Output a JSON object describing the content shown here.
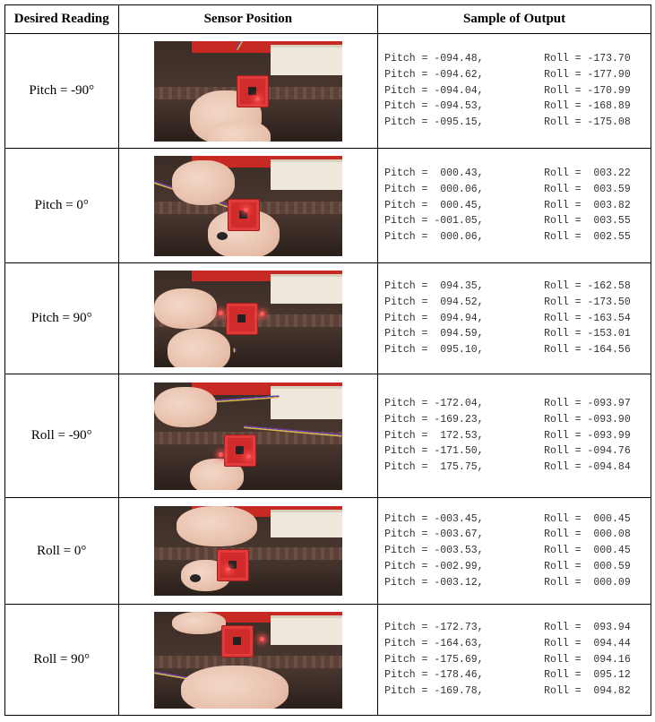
{
  "headers": {
    "desired_reading": "Desired Reading",
    "sensor_position": "Sensor Position",
    "sample_output": "Sample of Output"
  },
  "rows": [
    {
      "reading": "Pitch = -90°",
      "photo_icon": "sensor-photo",
      "lines": [
        {
          "pitch": "Pitch = -094.48,",
          "roll": "Roll = -173.70"
        },
        {
          "pitch": "Pitch = -094.62,",
          "roll": "Roll = -177.90"
        },
        {
          "pitch": "Pitch = -094.04,",
          "roll": "Roll = -170.99"
        },
        {
          "pitch": "Pitch = -094.53,",
          "roll": "Roll = -168.89"
        },
        {
          "pitch": "Pitch = -095.15,",
          "roll": "Roll = -175.08"
        }
      ]
    },
    {
      "reading": "Pitch = 0°",
      "photo_icon": "sensor-photo",
      "lines": [
        {
          "pitch": "Pitch =  000.43,",
          "roll": "Roll =  003.22"
        },
        {
          "pitch": "Pitch =  000.06,",
          "roll": "Roll =  003.59"
        },
        {
          "pitch": "Pitch =  000.45,",
          "roll": "Roll =  003.82"
        },
        {
          "pitch": "Pitch = -001.05,",
          "roll": "Roll =  003.55"
        },
        {
          "pitch": "Pitch =  000.06,",
          "roll": "Roll =  002.55"
        }
      ]
    },
    {
      "reading": "Pitch = 90°",
      "photo_icon": "sensor-photo",
      "lines": [
        {
          "pitch": "Pitch =  094.35,",
          "roll": "Roll = -162.58"
        },
        {
          "pitch": "Pitch =  094.52,",
          "roll": "Roll = -173.50"
        },
        {
          "pitch": "Pitch =  094.94,",
          "roll": "Roll = -163.54"
        },
        {
          "pitch": "Pitch =  094.59,",
          "roll": "Roll = -153.01"
        },
        {
          "pitch": "Pitch =  095.10,",
          "roll": "Roll = -164.56"
        }
      ]
    },
    {
      "reading": "Roll = -90°",
      "photo_icon": "sensor-photo",
      "lines": [
        {
          "pitch": "Pitch = -172.04,",
          "roll": "Roll = -093.97"
        },
        {
          "pitch": "Pitch = -169.23,",
          "roll": "Roll = -093.90"
        },
        {
          "pitch": "Pitch =  172.53,",
          "roll": "Roll = -093.99"
        },
        {
          "pitch": "Pitch = -171.50,",
          "roll": "Roll = -094.76"
        },
        {
          "pitch": "Pitch =  175.75,",
          "roll": "Roll = -094.84"
        }
      ]
    },
    {
      "reading": "Roll = 0°",
      "photo_icon": "sensor-photo",
      "lines": [
        {
          "pitch": "Pitch = -003.45,",
          "roll": "Roll =  000.45"
        },
        {
          "pitch": "Pitch = -003.67,",
          "roll": "Roll =  000.08"
        },
        {
          "pitch": "Pitch = -003.53,",
          "roll": "Roll =  000.45"
        },
        {
          "pitch": "Pitch = -002.99,",
          "roll": "Roll =  000.59"
        },
        {
          "pitch": "Pitch = -003.12,",
          "roll": "Roll =  000.09"
        }
      ]
    },
    {
      "reading": "Roll = 90°",
      "photo_icon": "sensor-photo",
      "lines": [
        {
          "pitch": "Pitch = -172.73,",
          "roll": "Roll =  093.94"
        },
        {
          "pitch": "Pitch = -164.63,",
          "roll": "Roll =  094.44"
        },
        {
          "pitch": "Pitch = -175.69,",
          "roll": "Roll =  094.16"
        },
        {
          "pitch": "Pitch = -178.46,",
          "roll": "Roll =  095.12"
        },
        {
          "pitch": "Pitch = -169.78,",
          "roll": "Roll =  094.82"
        }
      ]
    }
  ]
}
